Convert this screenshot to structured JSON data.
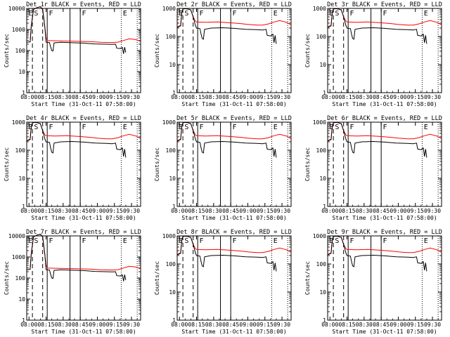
{
  "figure": {
    "xlabel": "Start Time (31-Oct-11 07:58:00)",
    "ylabel": "Counts/sec"
  },
  "chart_data": [
    {
      "type": "line",
      "title": "Det 1r BLACK = Events, RED = LLD",
      "variant": "A",
      "xlabel": "Start Time (31-Oct-11 07:58:00)",
      "ylabel": "Counts/sec",
      "x_ticks": [
        "08:00",
        "08:15",
        "08:30",
        "08:45",
        "09:00",
        "09:15",
        "09:30"
      ],
      "y_ticks": [
        "1",
        "10",
        "100",
        "1000",
        "10000"
      ],
      "ylim": [
        1,
        10000
      ],
      "y_scale": "log",
      "series": [
        {
          "name": "Events",
          "color": "#000000"
        },
        {
          "name": "LLD",
          "color": "#ff0000"
        }
      ],
      "markers": [
        "E",
        "S",
        "F",
        "F",
        "E"
      ]
    },
    {
      "type": "line",
      "title": "Det 2r BLACK = Events, RED = LLD",
      "variant": "B",
      "xlabel": "Start Time (31-Oct-11 07:58:00)",
      "ylabel": "Counts/sec",
      "x_ticks": [
        "08:00",
        "08:15",
        "08:30",
        "08:45",
        "09:00",
        "09:15",
        "09:30"
      ],
      "y_ticks": [
        "1",
        "10",
        "100",
        "1000"
      ],
      "ylim": [
        1,
        1000
      ],
      "y_scale": "log",
      "series": [
        {
          "name": "Events",
          "color": "#000000"
        },
        {
          "name": "LLD",
          "color": "#ff0000"
        }
      ],
      "markers": [
        "E",
        "S",
        "F",
        "F",
        "E"
      ]
    },
    {
      "type": "line",
      "title": "Det 3r BLACK = Events, RED = LLD",
      "variant": "B",
      "xlabel": "Start Time (31-Oct-11 07:58:00)",
      "ylabel": "Counts/sec",
      "x_ticks": [
        "08:00",
        "08:15",
        "08:30",
        "08:45",
        "09:00",
        "09:15",
        "09:30"
      ],
      "y_ticks": [
        "1",
        "10",
        "100",
        "1000"
      ],
      "ylim": [
        1,
        1000
      ],
      "y_scale": "log",
      "series": [
        {
          "name": "Events",
          "color": "#000000"
        },
        {
          "name": "LLD",
          "color": "#ff0000"
        }
      ],
      "markers": [
        "E",
        "S",
        "F",
        "F",
        "E"
      ]
    },
    {
      "type": "line",
      "title": "Det 4r BLACK = Events, RED = LLD",
      "variant": "B",
      "xlabel": "Start Time (31-Oct-11 07:58:00)",
      "ylabel": "Counts/sec",
      "x_ticks": [
        "08:00",
        "08:15",
        "08:30",
        "08:45",
        "09:00",
        "09:15",
        "09:30"
      ],
      "y_ticks": [
        "1",
        "10",
        "100",
        "1000"
      ],
      "ylim": [
        1,
        1000
      ],
      "y_scale": "log",
      "series": [
        {
          "name": "Events",
          "color": "#000000"
        },
        {
          "name": "LLD",
          "color": "#ff0000"
        }
      ],
      "markers": [
        "E",
        "S",
        "F",
        "F",
        "E"
      ]
    },
    {
      "type": "line",
      "title": "Det 5r BLACK = Events, RED = LLD",
      "variant": "B",
      "xlabel": "Start Time (31-Oct-11 07:58:00)",
      "ylabel": "Counts/sec",
      "x_ticks": [
        "08:00",
        "08:15",
        "08:30",
        "08:45",
        "09:00",
        "09:15",
        "09:30"
      ],
      "y_ticks": [
        "1",
        "10",
        "100",
        "1000"
      ],
      "ylim": [
        1,
        1000
      ],
      "y_scale": "log",
      "series": [
        {
          "name": "Events",
          "color": "#000000"
        },
        {
          "name": "LLD",
          "color": "#ff0000"
        }
      ],
      "markers": [
        "E",
        "S",
        "F",
        "F",
        "E"
      ]
    },
    {
      "type": "line",
      "title": "Det 6r BLACK = Events, RED = LLD",
      "variant": "B",
      "xlabel": "Start Time (31-Oct-11 07:58:00)",
      "ylabel": "Counts/sec",
      "x_ticks": [
        "08:00",
        "08:15",
        "08:30",
        "08:45",
        "09:00",
        "09:15",
        "09:30"
      ],
      "y_ticks": [
        "1",
        "10",
        "100",
        "1000"
      ],
      "ylim": [
        1,
        1000
      ],
      "y_scale": "log",
      "series": [
        {
          "name": "Events",
          "color": "#000000"
        },
        {
          "name": "LLD",
          "color": "#ff0000"
        }
      ],
      "markers": [
        "E",
        "S",
        "F",
        "F",
        "E"
      ]
    },
    {
      "type": "line",
      "title": "Det 7r BLACK = Events, RED = LLD",
      "variant": "A",
      "xlabel": "Start Time (31-Oct-11 07:58:00)",
      "ylabel": "Counts/sec",
      "x_ticks": [
        "08:00",
        "08:15",
        "08:30",
        "08:45",
        "09:00",
        "09:15",
        "09:30"
      ],
      "y_ticks": [
        "1",
        "10",
        "100",
        "1000",
        "10000"
      ],
      "ylim": [
        1,
        10000
      ],
      "y_scale": "log",
      "series": [
        {
          "name": "Events",
          "color": "#000000"
        },
        {
          "name": "LLD",
          "color": "#ff0000"
        }
      ],
      "markers": [
        "E",
        "S",
        "F",
        "F",
        "E"
      ]
    },
    {
      "type": "line",
      "title": "Det 8r BLACK = Events, RED = LLD",
      "variant": "B",
      "xlabel": "Start Time (31-Oct-11 07:58:00)",
      "ylabel": "Counts/sec",
      "x_ticks": [
        "08:00",
        "08:15",
        "08:30",
        "08:45",
        "09:00",
        "09:15",
        "09:30"
      ],
      "y_ticks": [
        "1",
        "10",
        "100",
        "1000"
      ],
      "ylim": [
        1,
        1000
      ],
      "y_scale": "log",
      "series": [
        {
          "name": "Events",
          "color": "#000000"
        },
        {
          "name": "LLD",
          "color": "#ff0000"
        }
      ],
      "markers": [
        "E",
        "S",
        "F",
        "F",
        "E"
      ]
    },
    {
      "type": "line",
      "title": "Det 9r BLACK = Events, RED = LLD",
      "variant": "B",
      "xlabel": "Start Time (31-Oct-11 07:58:00)",
      "ylabel": "Counts/sec",
      "x_ticks": [
        "08:00",
        "08:15",
        "08:30",
        "08:45",
        "09:00",
        "09:15",
        "09:30"
      ],
      "y_ticks": [
        "1",
        "10",
        "100",
        "1000"
      ],
      "ylim": [
        1,
        1000
      ],
      "y_scale": "log",
      "series": [
        {
          "name": "Events",
          "color": "#000000"
        },
        {
          "name": "LLD",
          "color": "#ff0000"
        }
      ],
      "markers": [
        "E",
        "S",
        "F",
        "F",
        "E"
      ]
    }
  ]
}
